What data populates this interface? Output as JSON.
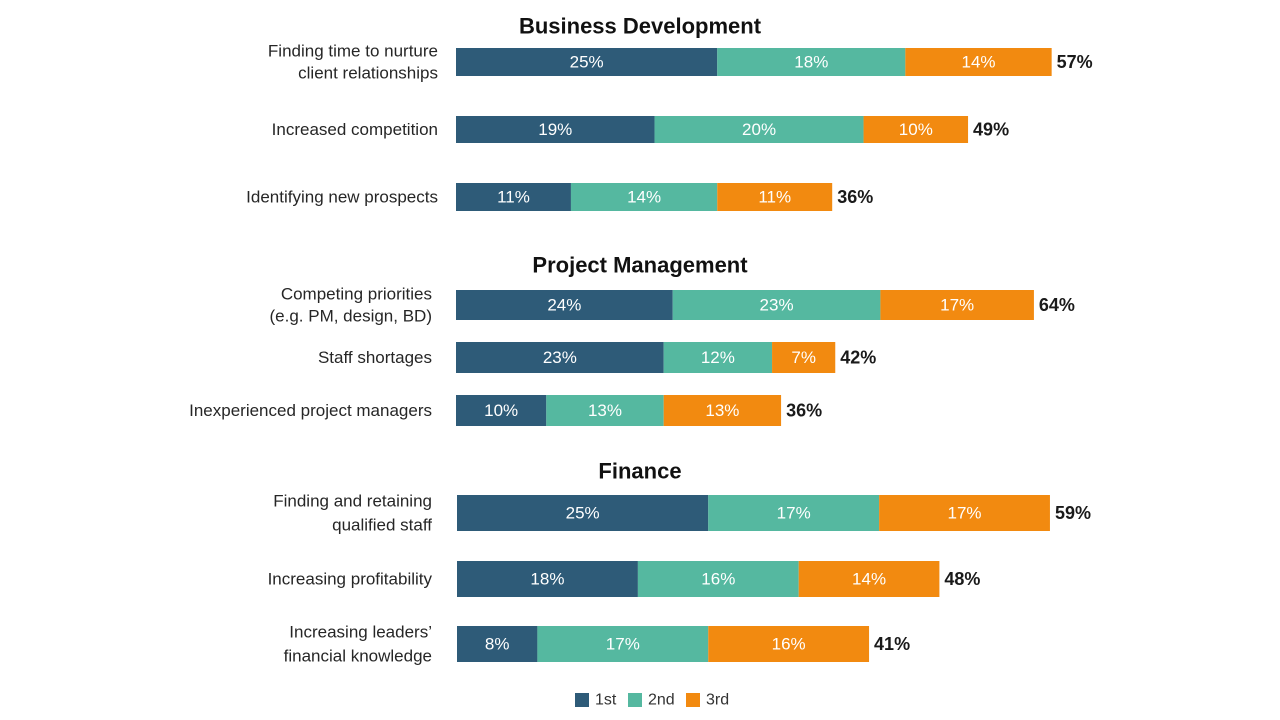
{
  "chart_data": [
    {
      "type": "bar",
      "orientation": "horizontal",
      "stacked": true,
      "title": "Business Development",
      "categories": [
        "Finding time to nurture client relationships",
        "Increased competition",
        "Identifying new prospects"
      ],
      "series": [
        {
          "name": "1st",
          "values": [
            25,
            19,
            11
          ]
        },
        {
          "name": "2nd",
          "values": [
            18,
            20,
            14
          ]
        },
        {
          "name": "3rd",
          "values": [
            14,
            10,
            11
          ]
        }
      ],
      "totals": [
        57,
        49,
        36
      ],
      "unit": "%"
    },
    {
      "type": "bar",
      "orientation": "horizontal",
      "stacked": true,
      "title": "Project Management",
      "categories": [
        "Competing priorities (e.g. PM, design, BD)",
        "Staff shortages",
        "Inexperienced project managers"
      ],
      "series": [
        {
          "name": "1st",
          "values": [
            24,
            23,
            10
          ]
        },
        {
          "name": "2nd",
          "values": [
            23,
            12,
            13
          ]
        },
        {
          "name": "3rd",
          "values": [
            17,
            7,
            13
          ]
        }
      ],
      "totals": [
        64,
        42,
        36
      ],
      "unit": "%"
    },
    {
      "type": "bar",
      "orientation": "horizontal",
      "stacked": true,
      "title": "Finance",
      "categories": [
        "Finding and retaining qualified staff",
        "Increasing profitability",
        "Increasing leaders’ financial knowledge"
      ],
      "series": [
        {
          "name": "1st",
          "values": [
            25,
            18,
            8
          ]
        },
        {
          "name": "2nd",
          "values": [
            17,
            16,
            17
          ]
        },
        {
          "name": "3rd",
          "values": [
            17,
            14,
            16
          ]
        }
      ],
      "totals": [
        59,
        48,
        41
      ],
      "unit": "%"
    }
  ],
  "labels": {
    "s0": [
      "Finding time to nurture",
      "client relationships"
    ],
    "s1": [
      "Increased competition"
    ],
    "s2": [
      "Identifying new prospects"
    ],
    "s3": [
      "Competing priorities",
      "(e.g. PM, design, BD)"
    ],
    "s4": [
      "Staff shortages"
    ],
    "s5": [
      "Inexperienced project managers"
    ],
    "s6": [
      "Finding and retaining",
      "qualified staff"
    ],
    "s7": [
      "Increasing profitability"
    ],
    "s8": [
      "Increasing leaders’",
      "financial knowledge"
    ]
  },
  "legend": [
    {
      "name": "1st",
      "color": "#2e5b78"
    },
    {
      "name": "2nd",
      "color": "#55b8a0"
    },
    {
      "name": "3rd",
      "color": "#f28a10"
    }
  ],
  "colors": {
    "first": "#2e5b78",
    "second": "#55b8a0",
    "third": "#f28a10"
  }
}
